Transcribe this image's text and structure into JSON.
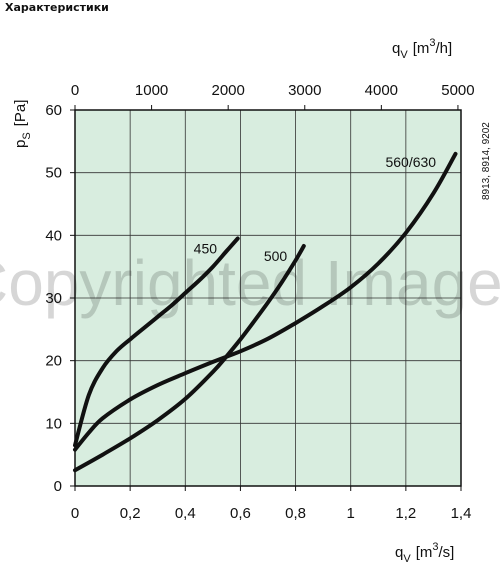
{
  "page": {
    "heading": "Характеристики"
  },
  "side_code": "8913, 8914, 9202",
  "watermark": "Copyrighted Image",
  "colors": {
    "plot_background": "#d8eddf",
    "grid": "#333333",
    "curves": "#111111"
  },
  "chart_data": {
    "type": "line",
    "title": "",
    "xlabel": {
      "symbol": "q",
      "subscript": "V",
      "unit": "[m",
      "unit_exp": "3",
      "unit_tail": "/s]"
    },
    "x2label": {
      "symbol": "q",
      "subscript": "V",
      "unit": "[m",
      "unit_exp": "3",
      "unit_tail": "/h]"
    },
    "ylabel": {
      "symbol": "p",
      "subscript": "S",
      "unit": "[Pa]"
    },
    "xlim": [
      0,
      1.4
    ],
    "ylim": [
      0,
      60
    ],
    "x_ticks": [
      0,
      0.2,
      0.4,
      0.6,
      0.8,
      1,
      1.2,
      1.4
    ],
    "x_tick_labels": [
      "0",
      "0,2",
      "0,4",
      "0,6",
      "0,8",
      "1",
      "1,2",
      "1,4"
    ],
    "x2_ticks": [
      0,
      1000,
      2000,
      3000,
      4000,
      5000
    ],
    "x2_tick_labels": [
      "0",
      "1000",
      "2000",
      "3000",
      "4000",
      "5000"
    ],
    "x2_per_x": 3600,
    "y_ticks": [
      0,
      10,
      20,
      30,
      40,
      50,
      60
    ],
    "y_tick_labels": [
      "0",
      "10",
      "20",
      "30",
      "40",
      "50",
      "60"
    ],
    "grid": true,
    "series": [
      {
        "name": "450",
        "x": [
          0,
          0.05,
          0.1,
          0.15,
          0.2,
          0.25,
          0.3,
          0.35,
          0.4,
          0.45,
          0.5,
          0.55,
          0.59
        ],
        "y": [
          6.5,
          14.5,
          18.8,
          21.5,
          23.4,
          25.2,
          27,
          28.8,
          30.8,
          32.8,
          35,
          37.5,
          39.5
        ]
      },
      {
        "name": "500",
        "x": [
          0,
          0.1,
          0.2,
          0.3,
          0.4,
          0.5,
          0.55,
          0.6,
          0.65,
          0.7,
          0.75,
          0.8,
          0.83
        ],
        "y": [
          2.5,
          5,
          7.6,
          10.5,
          13.9,
          18.2,
          20.7,
          23.4,
          26.3,
          29.3,
          32.5,
          36,
          38.3
        ]
      },
      {
        "name": "560/630",
        "x": [
          0,
          0.05,
          0.1,
          0.2,
          0.3,
          0.4,
          0.5,
          0.6,
          0.7,
          0.8,
          0.9,
          1,
          1.1,
          1.2,
          1.3,
          1.38
        ],
        "y": [
          5.8,
          8.5,
          10.8,
          13.8,
          16.1,
          18,
          19.8,
          21.5,
          23.5,
          26,
          28.7,
          31.7,
          35.5,
          40.4,
          46.7,
          53
        ]
      }
    ]
  }
}
